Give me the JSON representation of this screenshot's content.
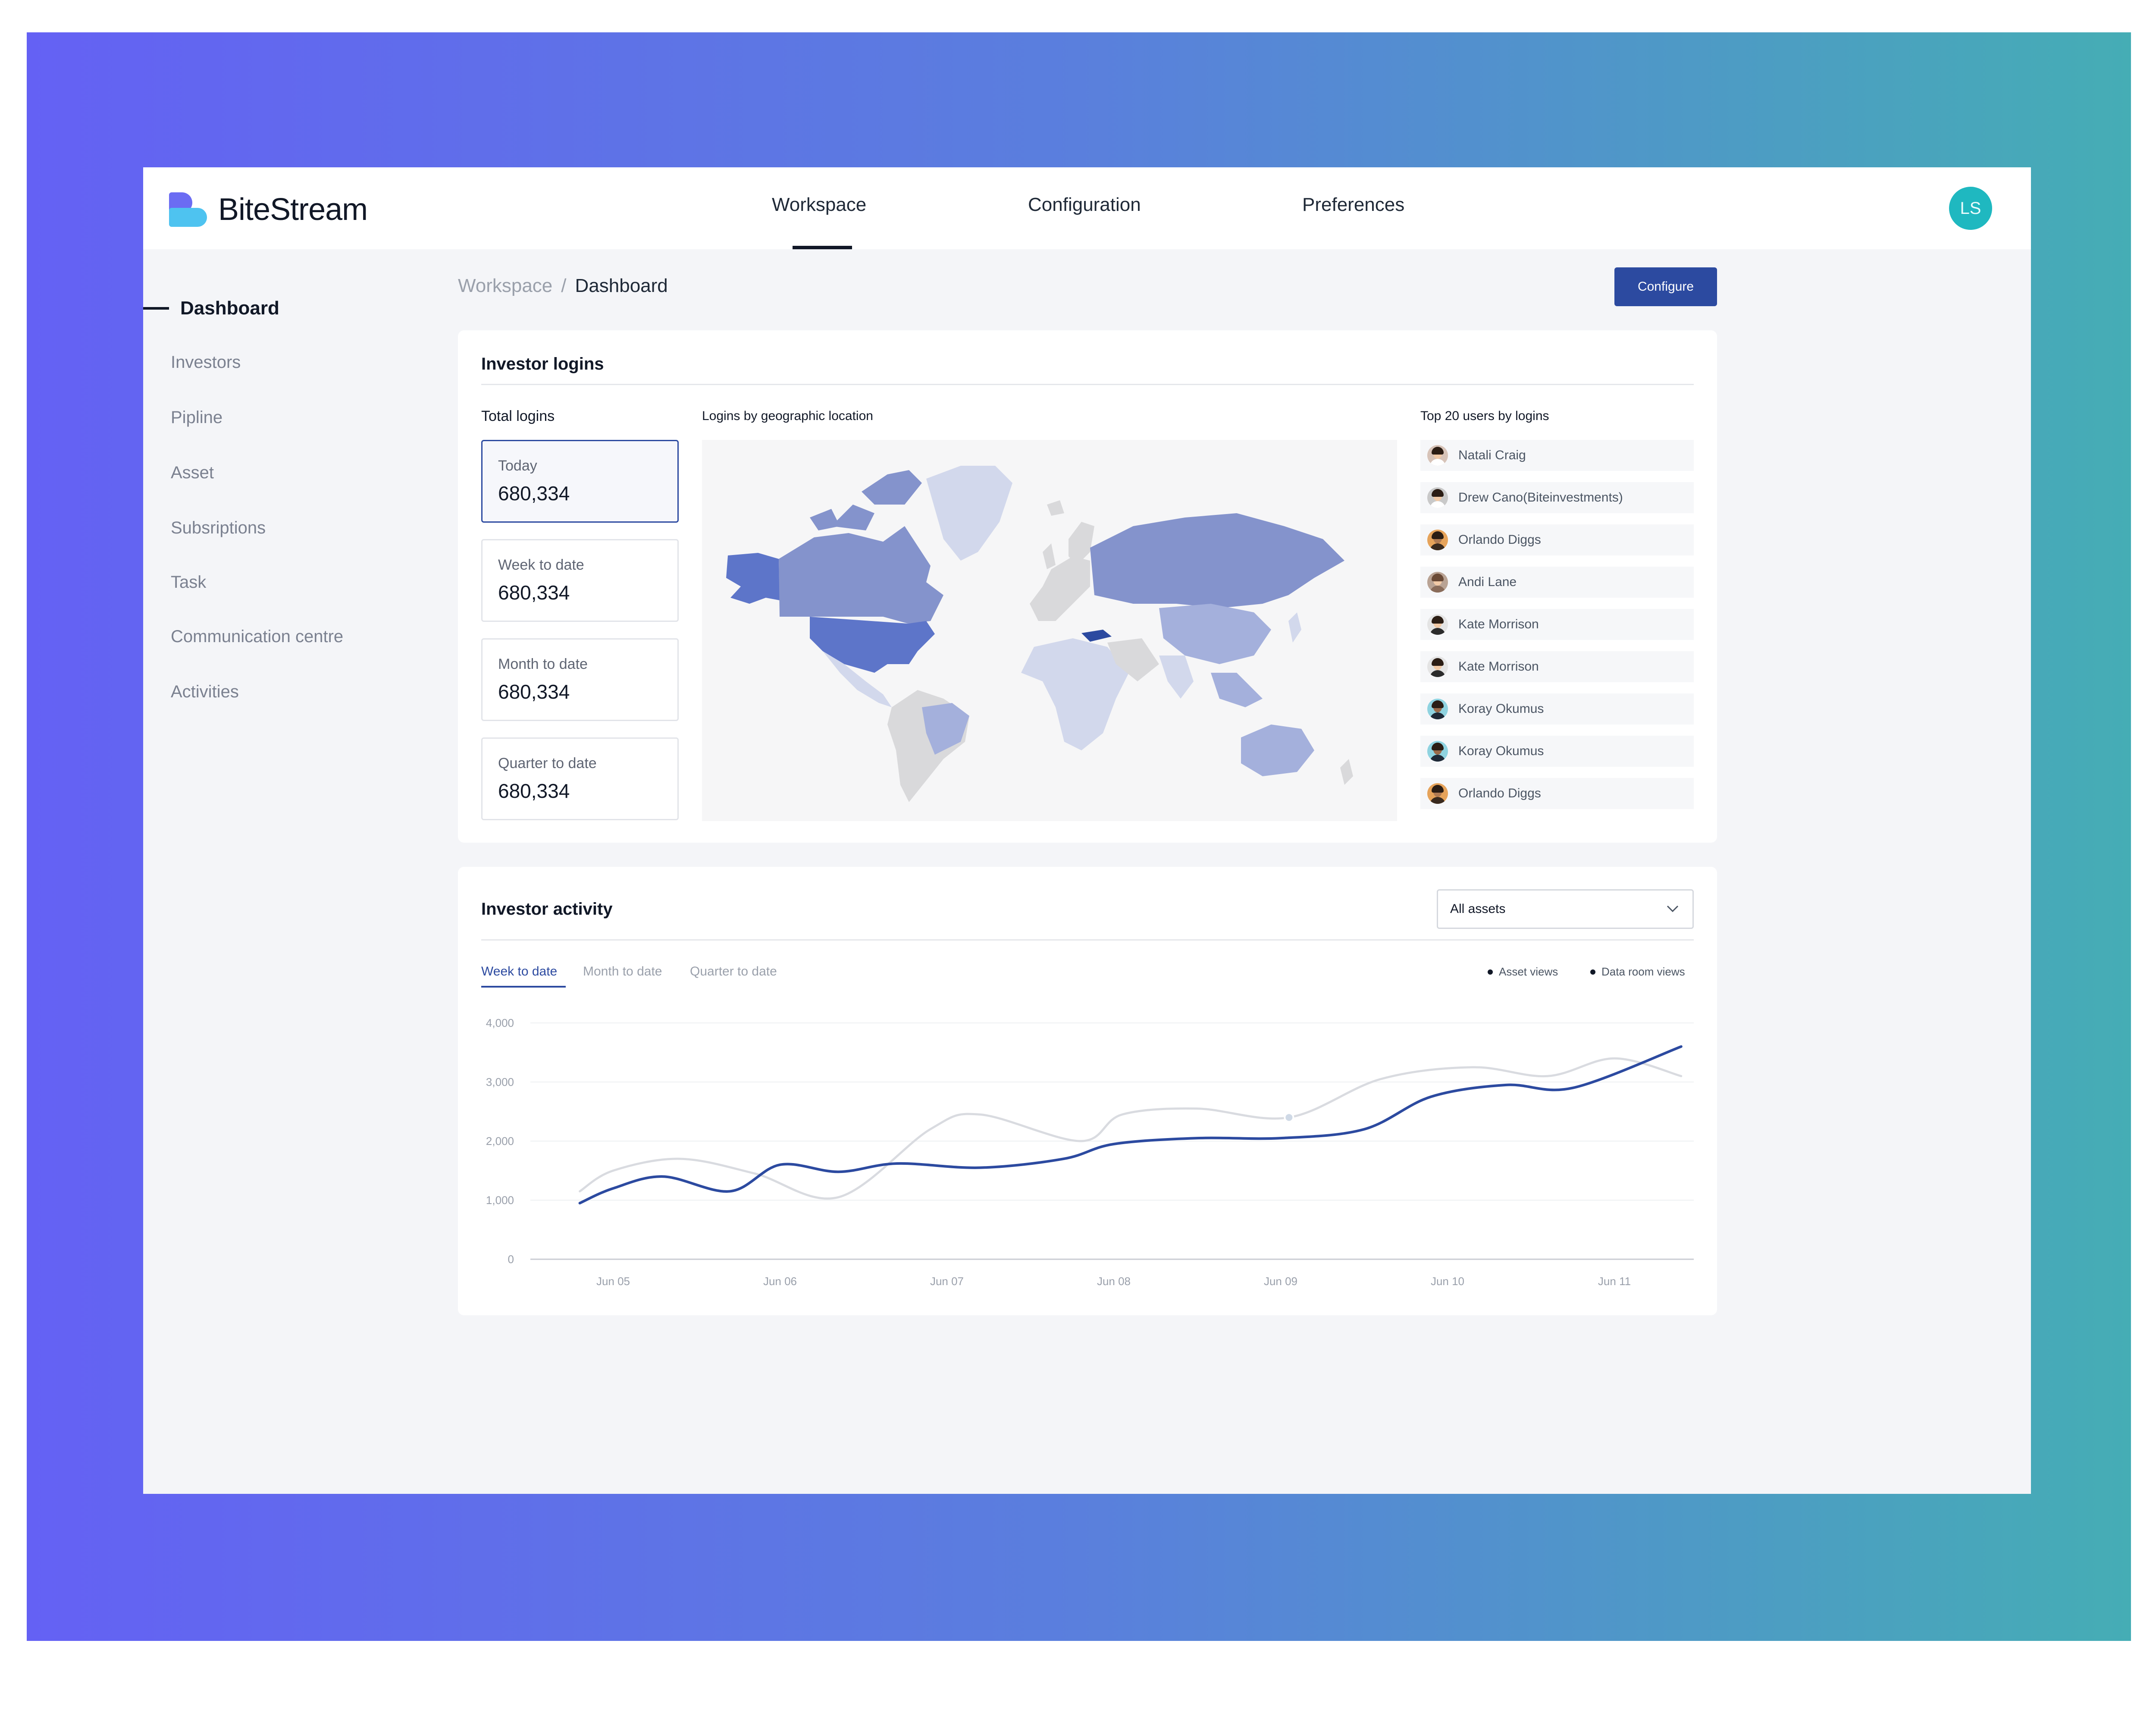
{
  "app": {
    "brand": "BiteStream",
    "user_initials": "LS"
  },
  "nav": {
    "tabs": [
      "Workspace",
      "Configuration",
      "Preferences"
    ],
    "active": "Workspace"
  },
  "sidebar": {
    "items": [
      {
        "label": "Dashboard",
        "active": true
      },
      {
        "label": "Investors",
        "active": false
      },
      {
        "label": "Pipline",
        "active": false
      },
      {
        "label": "Asset",
        "active": false
      },
      {
        "label": "Subsriptions",
        "active": false
      },
      {
        "label": "Task",
        "active": false
      },
      {
        "label": "Communication centre",
        "active": false
      },
      {
        "label": "Activities",
        "active": false
      }
    ]
  },
  "breadcrumb": {
    "parent": "Workspace",
    "separator": "/",
    "current": "Dashboard"
  },
  "actions": {
    "configure_label": "Configure"
  },
  "investor_logins": {
    "title": "Investor logins",
    "total_logins_title": "Total logins",
    "stats": [
      {
        "label": "Today",
        "value": "680,334",
        "selected": true
      },
      {
        "label": "Week to date",
        "value": "680,334",
        "selected": false
      },
      {
        "label": "Month to date",
        "value": "680,334",
        "selected": false
      },
      {
        "label": "Quarter to date",
        "value": "680,334",
        "selected": false
      }
    ],
    "map_title": "Logins by geographic location",
    "top_users_title": "Top 20 users by logins",
    "top_users": [
      "Natali Craig",
      "Drew Cano(Biteinvestments)",
      "Orlando Diggs",
      "Andi Lane",
      "Kate Morrison",
      "Kate Morrison",
      "Koray Okumus",
      "Koray Okumus",
      "Orlando Diggs"
    ]
  },
  "investor_activity": {
    "title": "Investor activity",
    "asset_filter": {
      "selected": "All assets"
    },
    "tabs": [
      "Week to date",
      "Month to date",
      "Quarter to date"
    ],
    "active_tab": "Week to date",
    "legend": [
      "Asset views",
      "Data room views"
    ]
  },
  "colors": {
    "accent": "#2c4aa0",
    "secondary_line": "#d9dbe0",
    "avatar": "#1fb8c0"
  },
  "chart_data": {
    "type": "line",
    "x": [
      "Jun 05",
      "Jun 06",
      "Jun 07",
      "Jun 08",
      "Jun 09",
      "Jun 10",
      "Jun 11"
    ],
    "ylim": [
      0,
      4000
    ],
    "yticks": [
      "4,000",
      "3,000",
      "2,000",
      "1,000",
      "0"
    ],
    "grid": true,
    "legend_position": "top-right",
    "series": [
      {
        "name": "Asset views",
        "color": "#2c4aa0",
        "x": [
          4.8,
          5.0,
          5.3,
          5.7,
          6.0,
          6.35,
          6.7,
          7.2,
          7.7,
          8.0,
          8.5,
          9.0,
          9.5,
          9.9,
          10.35,
          10.75,
          11.4
        ],
        "values": [
          950,
          1200,
          1400,
          1150,
          1600,
          1480,
          1620,
          1550,
          1700,
          1950,
          2050,
          2050,
          2200,
          2750,
          2950,
          2900,
          3600
        ]
      },
      {
        "name": "Data room views",
        "color": "#d9dbe0",
        "x": [
          4.8,
          5.0,
          5.4,
          5.85,
          6.35,
          6.9,
          7.2,
          7.8,
          8.05,
          8.5,
          9.05,
          9.6,
          10.15,
          10.6,
          11.0,
          11.4
        ],
        "values": [
          1150,
          1500,
          1700,
          1450,
          1050,
          2200,
          2450,
          2000,
          2450,
          2550,
          2400,
          3050,
          3250,
          3100,
          3400,
          3100
        ]
      }
    ]
  }
}
